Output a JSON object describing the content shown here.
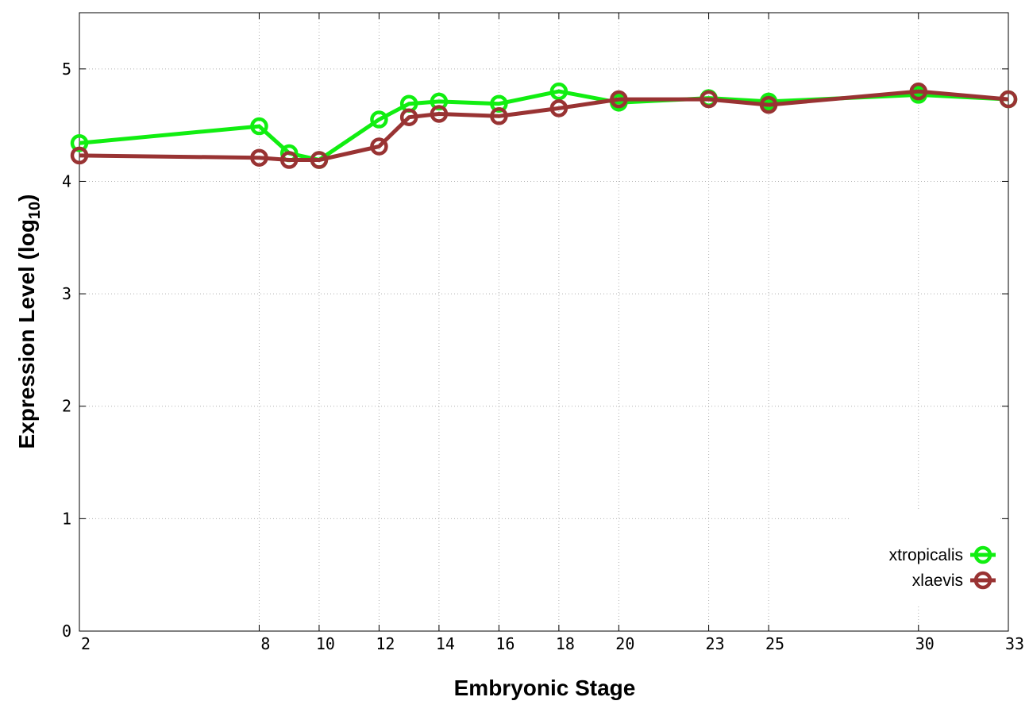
{
  "chart_data": {
    "type": "line",
    "xlabel": "Embryonic Stage",
    "ylabel_main": "Expression Level (log",
    "ylabel_sub": "10",
    "ylabel_close": ")",
    "xlim": [
      2,
      33
    ],
    "ylim": [
      0,
      5.5
    ],
    "x_ticks": [
      2,
      8,
      10,
      12,
      14,
      16,
      18,
      20,
      23,
      25,
      30,
      33
    ],
    "x_tick_labels": [
      "2",
      "8",
      "10",
      "12",
      "14",
      "16",
      "18",
      "20",
      "23",
      "25",
      "30",
      "33"
    ],
    "y_ticks": [
      0,
      1,
      2,
      3,
      4,
      5
    ],
    "y_tick_labels": [
      "0",
      "1",
      "2",
      "3",
      "4",
      "5"
    ],
    "grid": true,
    "legend_position": "bottom-right",
    "series": [
      {
        "name": "xtropicalis",
        "color": "#11ee11",
        "x": [
          2,
          8,
          9,
          10,
          12,
          13,
          14,
          16,
          18,
          20,
          23,
          25,
          30,
          33
        ],
        "y": [
          4.34,
          4.49,
          4.25,
          4.19,
          4.55,
          4.69,
          4.71,
          4.69,
          4.8,
          4.7,
          4.74,
          4.71,
          4.77,
          4.73
        ]
      },
      {
        "name": "xlaevis",
        "color": "#993333",
        "x": [
          2,
          8,
          9,
          10,
          12,
          13,
          14,
          16,
          18,
          20,
          23,
          25,
          30,
          33
        ],
        "y": [
          4.23,
          4.21,
          4.19,
          4.19,
          4.31,
          4.57,
          4.6,
          4.58,
          4.65,
          4.73,
          4.73,
          4.68,
          4.8,
          4.73
        ]
      }
    ]
  }
}
